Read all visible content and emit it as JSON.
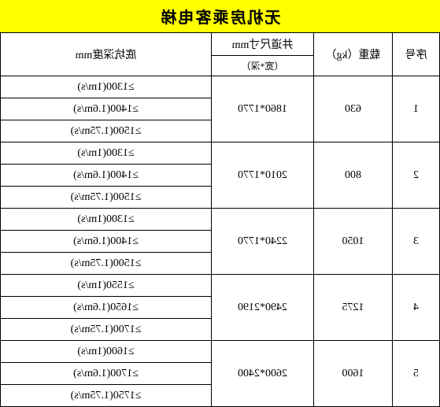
{
  "title": "无机房乘客电梯",
  "headers": {
    "seq": "序号",
    "load": "载重（kg）",
    "shaft_top": "井道尺寸mm",
    "shaft_sub": "（宽*深）",
    "pit": "底坑深度mm"
  },
  "rows": [
    {
      "seq": "1",
      "load": "630",
      "shaft": "1860*1770",
      "pits": [
        "≥1300(1m/s)",
        "≥1400(1.6m/s)",
        "≥1500(1.75m/s)"
      ]
    },
    {
      "seq": "2",
      "load": "800",
      "shaft": "2010*1770",
      "pits": [
        "≥1300(1m/s)",
        "≥1400(1.6m/s)",
        "≥1500(1.75m/s)"
      ]
    },
    {
      "seq": "3",
      "load": "1050",
      "shaft": "2240*1770",
      "pits": [
        "≥1300(1m/s)",
        "≥1400(1.6m/s)",
        "≥1500(1.75m/s)"
      ]
    },
    {
      "seq": "4",
      "load": "1275",
      "shaft": "2490*2190",
      "pits": [
        "≥1550(1m/s)",
        "≥1650(1.6m/s)",
        "≥1700(1.75m/s)"
      ]
    },
    {
      "seq": "5",
      "load": "1600",
      "shaft": "2600*2400",
      "pits": [
        "≥1600(1m/s)",
        "≥1700(1.6m/s)",
        "≥1750(1.75m/s)"
      ]
    }
  ],
  "colors": {
    "title_bg": "#ffff00",
    "border": "#000000",
    "bg": "#ffffff"
  }
}
